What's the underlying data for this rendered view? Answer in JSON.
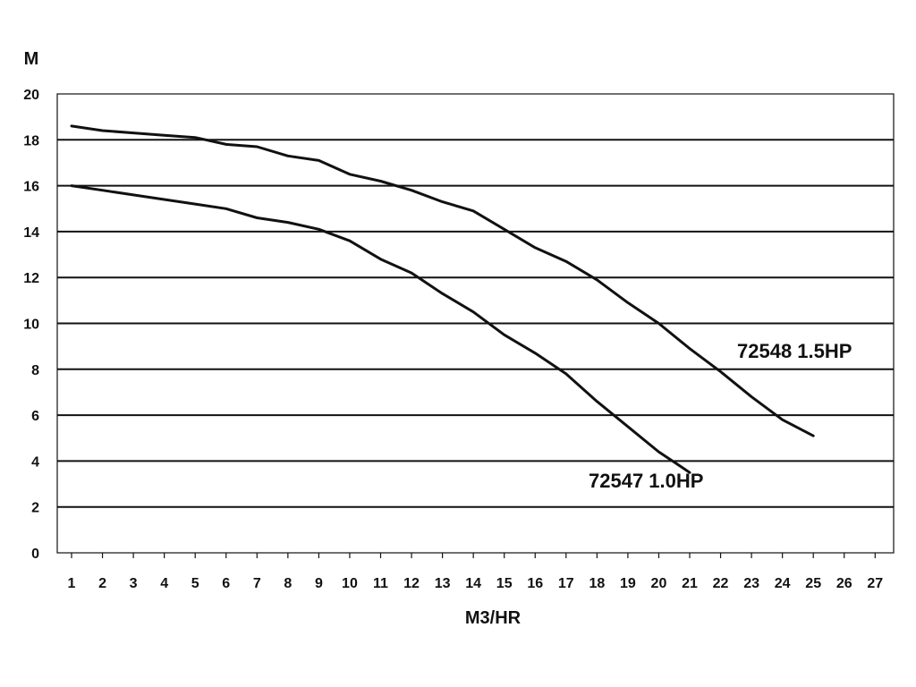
{
  "chart_data": {
    "type": "line",
    "title": "",
    "xlabel": "M3/HR",
    "ylabel": "M",
    "xlim": [
      0.5,
      27.5
    ],
    "ylim": [
      0,
      20
    ],
    "x_ticks": [
      "1",
      "2",
      "3",
      "4",
      "5",
      "6",
      "7",
      "8",
      "9",
      "10",
      "11",
      "12",
      "13",
      "14",
      "15",
      "16",
      "17",
      "18",
      "19",
      "20",
      "21",
      "22",
      "23",
      "24",
      "25",
      "26",
      "27"
    ],
    "y_ticks": [
      "0",
      "2",
      "4",
      "6",
      "8",
      "10",
      "12",
      "14",
      "16",
      "18",
      "20"
    ],
    "grid": "horizontal",
    "series": [
      {
        "name": "72548 1.5HP",
        "color": "#111111",
        "points": [
          [
            1,
            18.6
          ],
          [
            2,
            18.4
          ],
          [
            3,
            18.3
          ],
          [
            4,
            18.2
          ],
          [
            5,
            18.1
          ],
          [
            6,
            17.8
          ],
          [
            7,
            17.7
          ],
          [
            8,
            17.3
          ],
          [
            9,
            17.1
          ],
          [
            10,
            16.5
          ],
          [
            11,
            16.2
          ],
          [
            12,
            15.8
          ],
          [
            13,
            15.3
          ],
          [
            14,
            14.9
          ],
          [
            15,
            14.1
          ],
          [
            16,
            13.3
          ],
          [
            17,
            12.7
          ],
          [
            18,
            11.9
          ],
          [
            19,
            10.9
          ],
          [
            20,
            10.0
          ],
          [
            21,
            8.9
          ],
          [
            22,
            7.9
          ],
          [
            23,
            6.8
          ],
          [
            24,
            5.8
          ],
          [
            25,
            5.1
          ]
        ]
      },
      {
        "name": "72547 1.0HP",
        "color": "#111111",
        "points": [
          [
            1,
            16.0
          ],
          [
            2,
            15.8
          ],
          [
            3,
            15.6
          ],
          [
            4,
            15.4
          ],
          [
            5,
            15.2
          ],
          [
            6,
            15.0
          ],
          [
            7,
            14.6
          ],
          [
            8,
            14.4
          ],
          [
            9,
            14.1
          ],
          [
            10,
            13.6
          ],
          [
            11,
            12.8
          ],
          [
            12,
            12.2
          ],
          [
            13,
            11.3
          ],
          [
            14,
            10.5
          ],
          [
            15,
            9.5
          ],
          [
            16,
            8.7
          ],
          [
            17,
            7.8
          ],
          [
            18,
            6.6
          ],
          [
            19,
            5.5
          ],
          [
            20,
            4.4
          ],
          [
            21,
            3.5
          ]
        ]
      }
    ]
  },
  "colors": {
    "background": "#ffffff",
    "line": "#111111",
    "grid": "#111111"
  }
}
